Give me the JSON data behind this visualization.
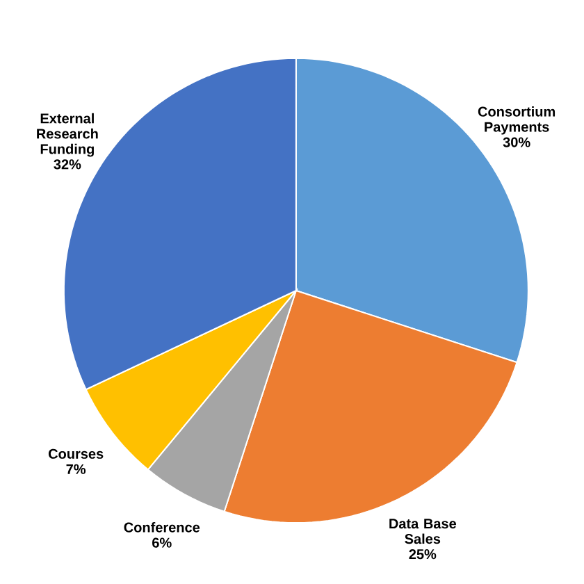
{
  "chart_data": {
    "type": "pie",
    "categories": [
      "Consortium Payments",
      "Data Base Sales",
      "Conference",
      "Courses",
      "External Research Funding"
    ],
    "values": [
      30,
      25,
      6,
      7,
      32
    ],
    "value_labels": [
      "30%",
      "25%",
      "6%",
      "7%",
      "32%"
    ],
    "colors": [
      "#5b9bd5",
      "#ed7d31",
      "#a5a5a5",
      "#ffc000",
      "#4472c4"
    ]
  }
}
